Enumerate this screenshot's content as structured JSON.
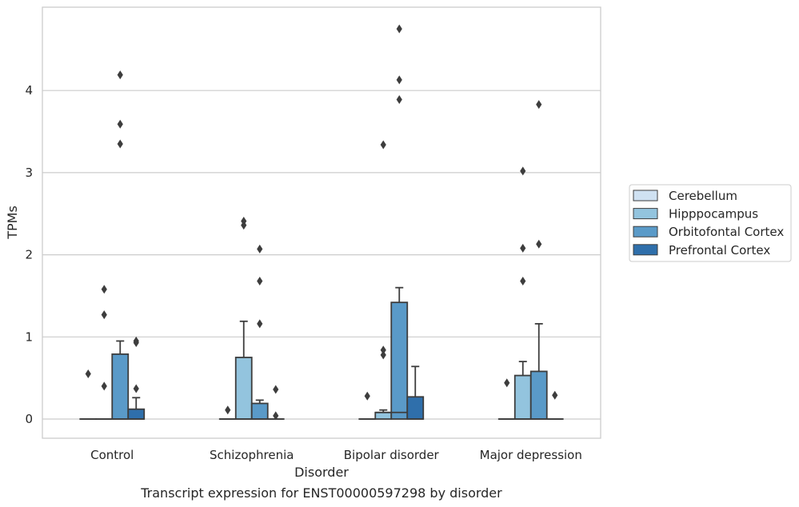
{
  "chart_data": {
    "type": "box",
    "title": "",
    "caption": "Transcript expression for ENST00000597298 by disorder",
    "xlabel": "Disorder",
    "ylabel": "TPMs",
    "ylim": [
      -0.23,
      4.98
    ],
    "yticks": [
      0,
      1,
      2,
      3,
      4
    ],
    "grid": "horizontal",
    "legend_position": "outside-right",
    "categories": [
      "Control",
      "Schizophrenia",
      "Bipolar disorder",
      "Major depression"
    ],
    "series": [
      {
        "name": "Cerebellum",
        "color": "#cfe1f2",
        "boxes": [
          {
            "q1": 0,
            "median": 0,
            "q3": 0,
            "whislo": 0,
            "whishi": 0,
            "fliers": [
              0.55
            ]
          },
          {
            "q1": 0,
            "median": 0,
            "q3": 0,
            "whislo": 0,
            "whishi": 0,
            "fliers": [
              0.11
            ]
          },
          {
            "q1": 0,
            "median": 0,
            "q3": 0,
            "whislo": 0,
            "whishi": 0,
            "fliers": [
              0.28
            ]
          },
          {
            "q1": 0,
            "median": 0,
            "q3": 0,
            "whislo": 0,
            "whishi": 0,
            "fliers": [
              0.44
            ]
          }
        ]
      },
      {
        "name": "Hipppocampus",
        "color": "#93c4de",
        "boxes": [
          {
            "q1": 0,
            "median": 0,
            "q3": 0,
            "whislo": 0,
            "whishi": 0,
            "fliers": [
              0.4,
              1.27,
              1.58
            ]
          },
          {
            "q1": 0,
            "median": 0,
            "q3": 0.75,
            "whislo": 0,
            "whishi": 1.19,
            "fliers": [
              2.36,
              2.41
            ]
          },
          {
            "q1": 0,
            "median": 0.08,
            "q3": 0.08,
            "whislo": 0,
            "whishi": 0.11,
            "fliers": [
              0.78,
              0.84,
              3.34
            ]
          },
          {
            "q1": 0,
            "median": 0,
            "q3": 0.53,
            "whislo": 0,
            "whishi": 0.7,
            "fliers": [
              1.68,
              2.08,
              3.02
            ]
          }
        ]
      },
      {
        "name": "Orbitofontal Cortex",
        "color": "#5a9ac8",
        "boxes": [
          {
            "q1": 0,
            "median": 0,
            "q3": 0.79,
            "whislo": 0,
            "whishi": 0.95,
            "fliers": [
              3.35,
              3.59,
              4.19
            ]
          },
          {
            "q1": 0,
            "median": 0,
            "q3": 0.19,
            "whislo": 0,
            "whishi": 0.23,
            "fliers": [
              1.16,
              1.68,
              2.07
            ]
          },
          {
            "q1": 0,
            "median": 0.08,
            "q3": 1.42,
            "whislo": 0,
            "whishi": 1.6,
            "fliers": [
              3.89,
              4.13,
              4.75
            ]
          },
          {
            "q1": 0,
            "median": 0,
            "q3": 0.58,
            "whislo": 0,
            "whishi": 1.16,
            "fliers": [
              2.13,
              3.83
            ]
          }
        ]
      },
      {
        "name": "Prefrontal Cortex",
        "color": "#2f6fab",
        "boxes": [
          {
            "q1": 0,
            "median": 0,
            "q3": 0.12,
            "whislo": 0,
            "whishi": 0.26,
            "fliers": [
              0.37,
              0.93,
              0.95
            ]
          },
          {
            "q1": 0,
            "median": 0,
            "q3": 0,
            "whislo": 0,
            "whishi": 0,
            "fliers": [
              0.04,
              0.36
            ]
          },
          {
            "q1": 0,
            "median": 0,
            "q3": 0.27,
            "whislo": 0,
            "whishi": 0.64,
            "fliers": []
          },
          {
            "q1": 0,
            "median": 0,
            "q3": 0,
            "whislo": 0,
            "whishi": 0,
            "fliers": [
              0.29
            ]
          }
        ]
      }
    ]
  }
}
